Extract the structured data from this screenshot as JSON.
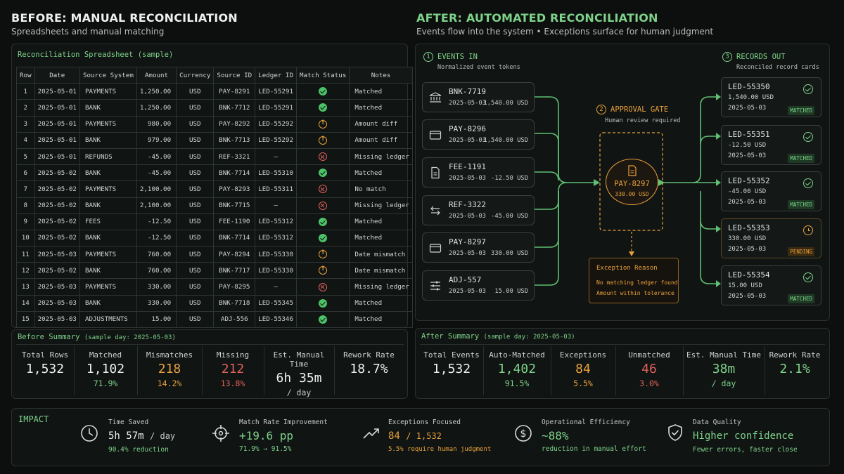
{
  "before": {
    "title": "BEFORE: MANUAL RECONCILIATION",
    "subtitle": "Spreadsheets and manual matching",
    "panel_title": "Reconciliation Spreadsheet",
    "panel_title_note": "(sample)",
    "columns": [
      "Row",
      "Date",
      "Source System",
      "Amount",
      "Currency",
      "Source ID",
      "Ledger ID",
      "Match Status",
      "Notes"
    ],
    "rows": [
      {
        "row": "1",
        "date": "2025-05-01",
        "source": "PAYMENTS",
        "amount": "1,250.00",
        "currency": "USD",
        "source_id": "PAY-8291",
        "ledger_id": "LED-55291",
        "status": "ok",
        "notes": "Matched"
      },
      {
        "row": "2",
        "date": "2025-05-01",
        "source": "BANK",
        "amount": "1,250.00",
        "currency": "USD",
        "source_id": "BNK-7712",
        "ledger_id": "LED-55291",
        "status": "ok",
        "notes": "Matched"
      },
      {
        "row": "3",
        "date": "2025-05-01",
        "source": "PAYMENTS",
        "amount": "980.00",
        "currency": "USD",
        "source_id": "PAY-8292",
        "ledger_id": "LED-55292",
        "status": "warn",
        "notes": "Amount diff"
      },
      {
        "row": "4",
        "date": "2025-05-01",
        "source": "BANK",
        "amount": "979.00",
        "currency": "USD",
        "source_id": "BNK-7713",
        "ledger_id": "LED-55292",
        "status": "warn",
        "notes": "Amount diff"
      },
      {
        "row": "5",
        "date": "2025-05-01",
        "source": "REFUNDS",
        "amount": "-45.00",
        "currency": "USD",
        "source_id": "REF-3321",
        "ledger_id": "—",
        "status": "err",
        "notes": "Missing ledger"
      },
      {
        "row": "6",
        "date": "2025-05-02",
        "source": "BANK",
        "amount": "-45.00",
        "currency": "USD",
        "source_id": "BNK-7714",
        "ledger_id": "LED-55310",
        "status": "ok",
        "notes": "Matched"
      },
      {
        "row": "7",
        "date": "2025-05-02",
        "source": "PAYMENTS",
        "amount": "2,100.00",
        "currency": "USD",
        "source_id": "PAY-8293",
        "ledger_id": "LED-55311",
        "status": "err",
        "notes": "No match"
      },
      {
        "row": "8",
        "date": "2025-05-02",
        "source": "BANK",
        "amount": "2,100.00",
        "currency": "USD",
        "source_id": "BNK-7715",
        "ledger_id": "—",
        "status": "err",
        "notes": "Missing ledger"
      },
      {
        "row": "9",
        "date": "2025-05-02",
        "source": "FEES",
        "amount": "-12.50",
        "currency": "USD",
        "source_id": "FEE-1190",
        "ledger_id": "LED-55312",
        "status": "ok",
        "notes": "Matched"
      },
      {
        "row": "10",
        "date": "2025-05-02",
        "source": "BANK",
        "amount": "-12.50",
        "currency": "USD",
        "source_id": "BNK-7714",
        "ledger_id": "LED-55312",
        "status": "ok",
        "notes": "Matched"
      },
      {
        "row": "11",
        "date": "2025-05-03",
        "source": "PAYMENTS",
        "amount": "760.00",
        "currency": "USD",
        "source_id": "PAY-8294",
        "ledger_id": "LED-55330",
        "status": "warn",
        "notes": "Date mismatch"
      },
      {
        "row": "12",
        "date": "2025-05-02",
        "source": "BANK",
        "amount": "760.00",
        "currency": "USD",
        "source_id": "BNK-7717",
        "ledger_id": "LED-55330",
        "status": "warn",
        "notes": "Date mismatch"
      },
      {
        "row": "13",
        "date": "2025-05-03",
        "source": "PAYMENTS",
        "amount": "330.00",
        "currency": "USD",
        "source_id": "PAY-8295",
        "ledger_id": "—",
        "status": "err",
        "notes": "Missing ledger"
      },
      {
        "row": "14",
        "date": "2025-05-03",
        "source": "BANK",
        "amount": "330.00",
        "currency": "USD",
        "source_id": "BNK-7718",
        "ledger_id": "LED-55345",
        "status": "ok",
        "notes": "Matched"
      },
      {
        "row": "15",
        "date": "2025-05-03",
        "source": "ADJUSTMENTS",
        "amount": "15.00",
        "currency": "USD",
        "source_id": "ADJ-556",
        "ledger_id": "LED-55346",
        "status": "ok",
        "notes": "Matched"
      }
    ],
    "summary_title": "Before Summary",
    "summary_note": "(sample day: 2025-05-03)",
    "summary": [
      {
        "label": "Total Rows",
        "value": "1,532",
        "sub": ""
      },
      {
        "label": "Matched",
        "value": "1,102",
        "sub": "71.9%"
      },
      {
        "label": "Mismatches",
        "value": "218",
        "sub": "14.2%"
      },
      {
        "label": "Missing",
        "value": "212",
        "sub": "13.8%"
      },
      {
        "label": "Est. Manual Time",
        "value": "6h 35m",
        "sub": "/ day"
      },
      {
        "label": "Rework Rate",
        "value": "18.7%",
        "sub": ""
      }
    ]
  },
  "after": {
    "title": "AFTER: AUTOMATED RECONCILIATION",
    "subtitle": "Events flow into the system • Exceptions surface for human judgment",
    "events_title": "EVENTS IN",
    "events_num": "1",
    "events_sub": "Normalized event tokens",
    "gate_title": "APPROVAL GATE",
    "gate_num": "2",
    "gate_sub": "Human review required",
    "records_title": "RECORDS OUT",
    "records_num": "3",
    "records_sub": "Reconciled record cards",
    "events": [
      {
        "id": "BNK-7719",
        "date": "2025-05-03",
        "amount": "1,540.00 USD",
        "icon": "bank-icon"
      },
      {
        "id": "PAY-8296",
        "date": "2025-05-03",
        "amount": "1,540.00 USD",
        "icon": "card-icon"
      },
      {
        "id": "FEE-1191",
        "date": "2025-05-03",
        "amount": "-12.50 USD",
        "icon": "document-icon"
      },
      {
        "id": "REF-3322",
        "date": "2025-05-03",
        "amount": "-45.00 USD",
        "icon": "refund-arrows-icon"
      },
      {
        "id": "PAY-8297",
        "date": "2025-05-03",
        "amount": "330.00 USD",
        "icon": "card-icon"
      },
      {
        "id": "ADJ-557",
        "date": "2025-05-03",
        "amount": "15.00 USD",
        "icon": "sliders-icon"
      }
    ],
    "gate_token": {
      "id": "PAY-8297",
      "amount": "330.00 USD"
    },
    "exception_title": "Exception Reason",
    "exception_lines": [
      "No matching ledger found",
      "Amount within tolerance"
    ],
    "records": [
      {
        "id": "LED-55350",
        "amount": "1,540.00 USD",
        "date": "2025-05-03",
        "badge": "MATCHED",
        "state": "matched"
      },
      {
        "id": "LED-55351",
        "amount": "-12.50 USD",
        "date": "2025-05-03",
        "badge": "MATCHED",
        "state": "matched"
      },
      {
        "id": "LED-55352",
        "amount": "-45.00 USD",
        "date": "2025-05-03",
        "badge": "MATCHED",
        "state": "matched"
      },
      {
        "id": "LED-55353",
        "amount": "330.00 USD",
        "date": "2025-05-03",
        "badge": "PENDING",
        "state": "pending"
      },
      {
        "id": "LED-55354",
        "amount": "15.00 USD",
        "date": "2025-05-03",
        "badge": "MATCHED",
        "state": "matched"
      }
    ],
    "summary_title": "After Summary",
    "summary_note": "(sample day: 2025-05-03)",
    "summary": [
      {
        "label": "Total Events",
        "value": "1,532",
        "sub": ""
      },
      {
        "label": "Auto-Matched",
        "value": "1,402",
        "sub": "91.5%"
      },
      {
        "label": "Exceptions",
        "value": "84",
        "sub": "5.5%"
      },
      {
        "label": "Unmatched",
        "value": "46",
        "sub": "3.0%"
      },
      {
        "label": "Est. Manual Time",
        "value": "38m",
        "sub": "/ day"
      },
      {
        "label": "Rework Rate",
        "value": "2.1%",
        "sub": ""
      }
    ]
  },
  "impact": {
    "title": "IMPACT",
    "items": [
      {
        "label": "Time Saved",
        "value": "5h 57m",
        "value_suffix": "/ day",
        "sub": "90.4% reduction",
        "icon": "clock-icon"
      },
      {
        "label": "Match Rate Improvement",
        "value": "+19.6 pp",
        "value_suffix": "",
        "sub": "71.9% → 91.5%",
        "icon": "target-icon"
      },
      {
        "label": "Exceptions Focused",
        "value": "84",
        "value_suffix": "/ 1,532",
        "sub": "5.5% require human judgment",
        "icon": "trend-icon"
      },
      {
        "label": "Operational Efficiency",
        "value": "~88%",
        "value_suffix": "",
        "sub": "reduction in manual effort",
        "icon": "dollar-icon"
      },
      {
        "label": "Data Quality",
        "value": "Higher confidence",
        "value_suffix": "",
        "sub": "Fewer errors, faster close",
        "icon": "shield-check-icon"
      }
    ]
  },
  "colors": {
    "green": "#7fd28a",
    "orange": "#e8a13a",
    "red": "#e0605a",
    "background": "#0c0f0e"
  }
}
